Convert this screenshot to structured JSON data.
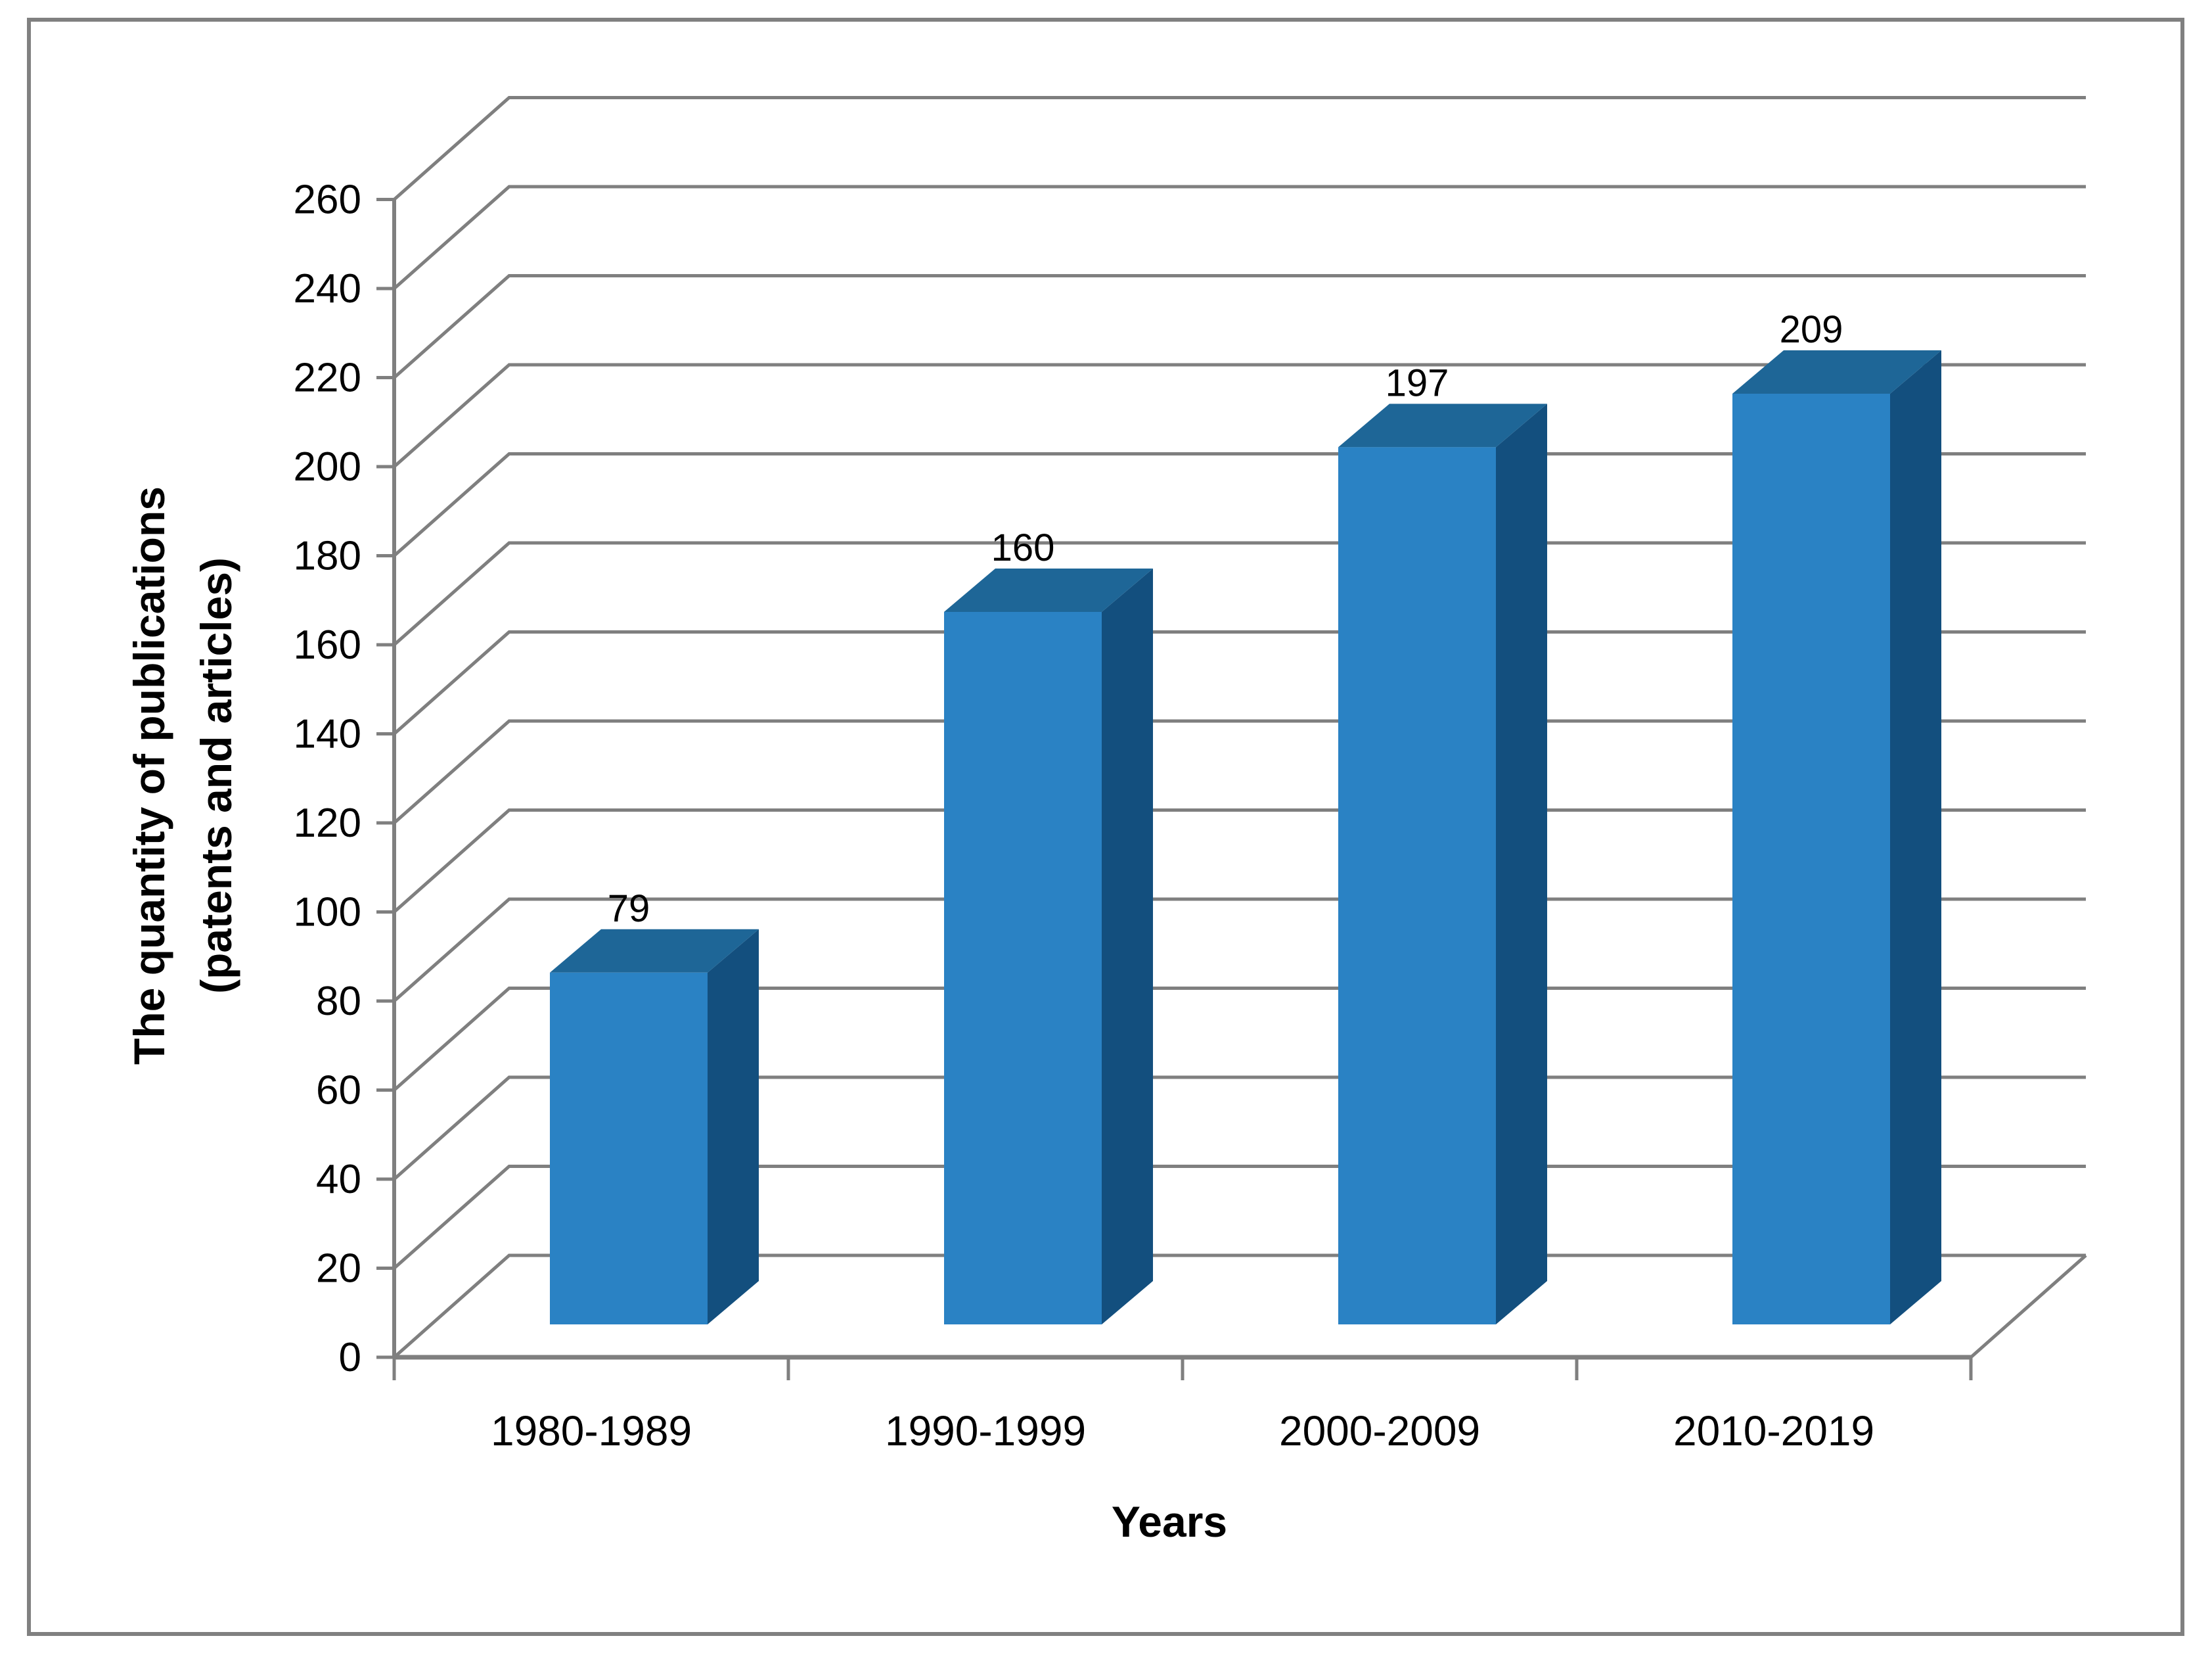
{
  "figure": {
    "background": "#FFFFFF",
    "border_color": "#808080"
  },
  "chart_data": {
    "type": "bar",
    "style_3d": true,
    "categories": [
      "1980-1989",
      "1990-1999",
      "2000-2009",
      "2010-2019"
    ],
    "values": [
      79,
      160,
      197,
      209
    ],
    "data_labels": [
      "79",
      "160",
      "197",
      "209"
    ],
    "title": "",
    "xlabel": "Years",
    "ylabel_line1": "The quantity of publications",
    "ylabel_line2": "(patents and articles)",
    "y_ticks": [
      0,
      20,
      40,
      60,
      80,
      100,
      120,
      140,
      160,
      180,
      200,
      220,
      240,
      260
    ],
    "ylim": [
      0,
      260
    ],
    "grid": true,
    "legend": "none",
    "colors": {
      "bar_front": "#2A82C4",
      "bar_top": "#1E6697",
      "bar_side": "#134F7E",
      "gridline": "#7F7F7F",
      "axis": "#7F7F7F",
      "text": "#000000"
    }
  }
}
